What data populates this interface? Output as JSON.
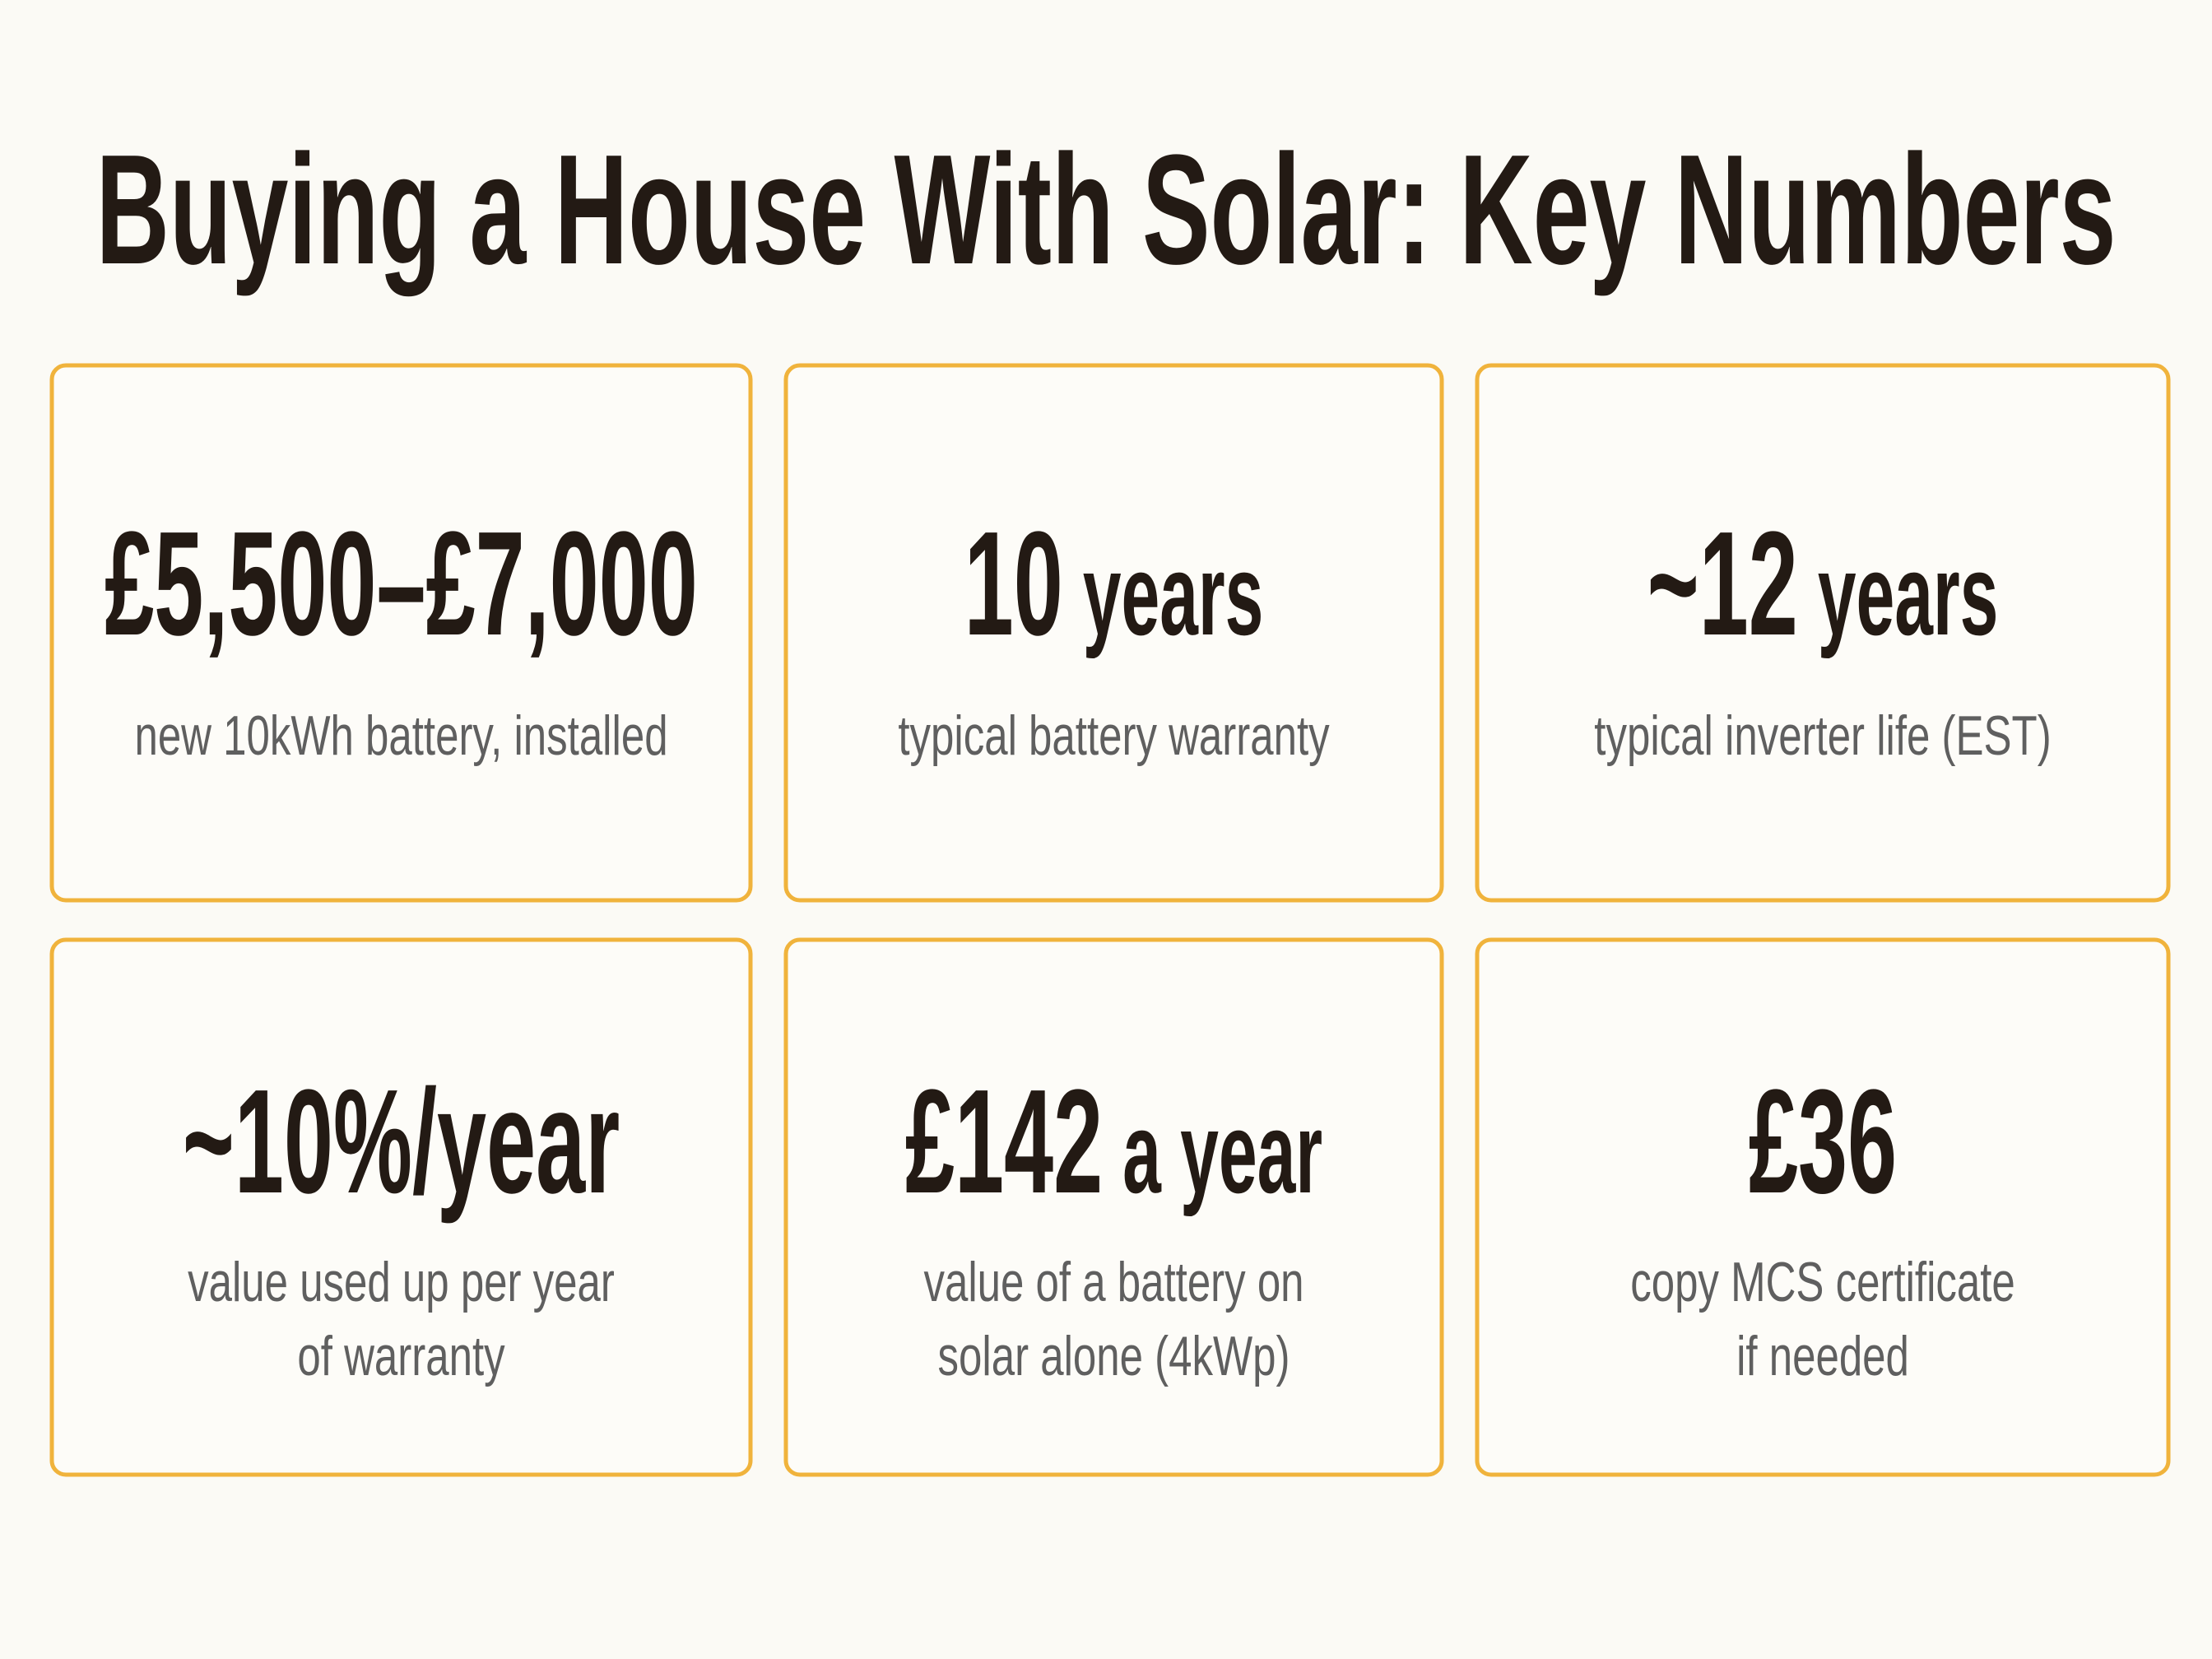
{
  "header": {
    "title": "Buying a House With Solar: Key Numbers"
  },
  "cards": [
    {
      "value": "£5,500–£7,000",
      "label": [
        "new 10kWh battery, installed"
      ]
    },
    {
      "value": "10",
      "unit": "years",
      "label": [
        "typical battery warranty"
      ]
    },
    {
      "value": "~12",
      "unit": "years",
      "label": [
        "typical inverter life (EST)"
      ]
    },
    {
      "value": "~10%/year",
      "label": [
        "value used up per year",
        "of warranty"
      ]
    },
    {
      "value": "£142",
      "unit": "a year",
      "label": [
        "value of a battery on",
        "solar alone (4kWp)"
      ]
    },
    {
      "value": "£36",
      "label": [
        "copy MCS certificate",
        "if needed"
      ]
    }
  ]
}
